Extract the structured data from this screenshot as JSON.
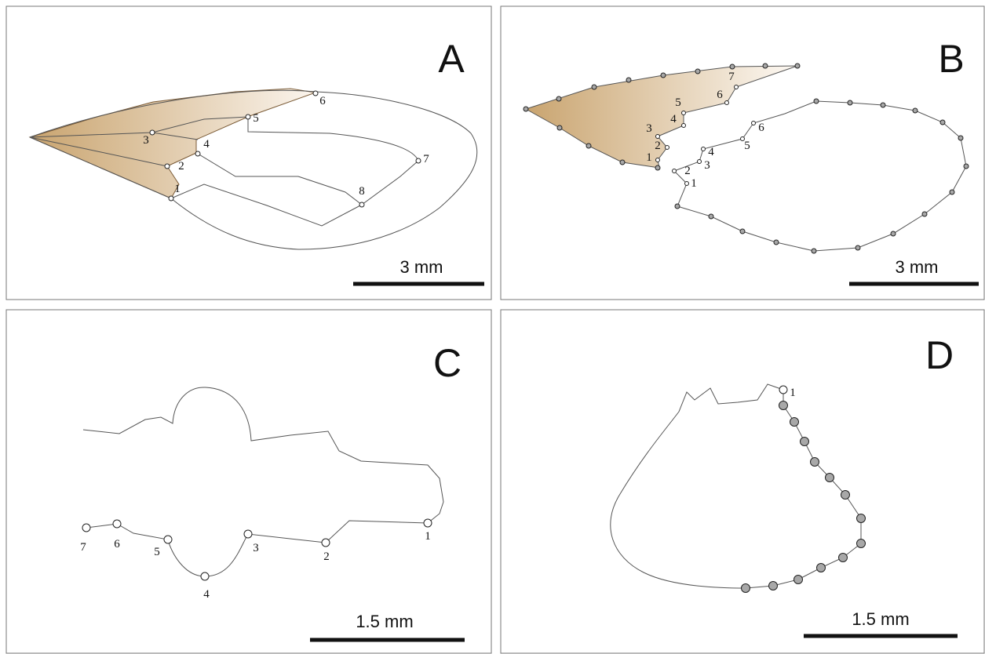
{
  "panels": [
    {
      "letter": "A",
      "scale": "3 mm",
      "landmarks": [
        "1",
        "2",
        "3",
        "4",
        "5",
        "6",
        "7",
        "8"
      ]
    },
    {
      "letter": "B",
      "scale": "3 mm",
      "landmarks": [
        "1",
        "2",
        "3",
        "4",
        "5",
        "6",
        "7"
      ],
      "landmarks_2": [
        "1",
        "2",
        "3",
        "4",
        "5",
        "6"
      ]
    },
    {
      "letter": "C",
      "scale": "1.5 mm",
      "landmarks": [
        "1",
        "2",
        "3",
        "4",
        "5",
        "6",
        "7"
      ]
    },
    {
      "letter": "D",
      "scale": "1.5 mm",
      "landmarks": [
        "1"
      ]
    }
  ]
}
